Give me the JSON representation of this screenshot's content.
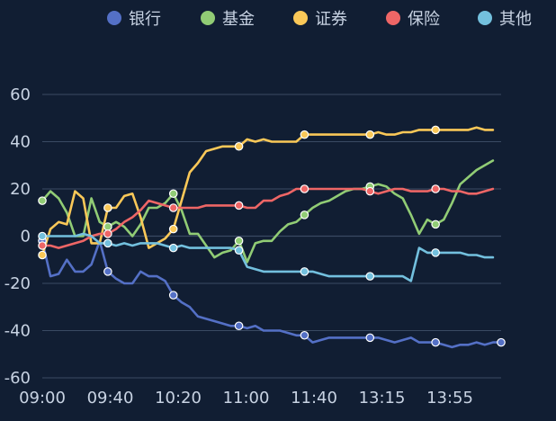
{
  "chart_data": {
    "type": "line",
    "title": "",
    "xlabel": "",
    "ylabel": "",
    "ylim": [
      -60,
      60
    ],
    "yticks": [
      60,
      40,
      20,
      0,
      -20,
      -40,
      -60
    ],
    "xtick_labels": [
      "09:00",
      "09:40",
      "10:20",
      "11:00",
      "11:40",
      "13:15",
      "13:55"
    ],
    "legend_position": "top-right",
    "grid": true,
    "colors": {
      "background": "#111e33",
      "grid": "#3a4a63",
      "axis_text": "#c8d3e3"
    },
    "series": [
      {
        "name": "银行",
        "color": "#5470c6",
        "values": [
          -2,
          -17,
          -16,
          -10,
          -15,
          -15,
          -12,
          -2,
          -15,
          -18,
          -20,
          -20,
          -15,
          -17,
          -17,
          -19,
          -25,
          -28,
          -30,
          -34,
          -35,
          -36,
          -37,
          -38,
          -38,
          -39,
          -38,
          -40,
          -40,
          -40,
          -41,
          -42,
          -42,
          -45,
          -44,
          -43,
          -43,
          -43,
          -43,
          -43,
          -43,
          -43,
          -44,
          -45,
          -44,
          -43,
          -45,
          -45,
          -45,
          -46,
          -47,
          -46,
          -46,
          -45,
          -46,
          -45,
          -45
        ]
      },
      {
        "name": "基金",
        "color": "#91cc75",
        "values": [
          15,
          19,
          16,
          10,
          0,
          0,
          16,
          6,
          4,
          6,
          4,
          0,
          5,
          12,
          12,
          14,
          18,
          11,
          1,
          1,
          -4,
          -9,
          -7,
          -6,
          -2,
          -11,
          -3,
          -2,
          -2,
          2,
          5,
          6,
          9,
          12,
          14,
          15,
          17,
          19,
          20,
          20,
          21,
          22,
          21,
          18,
          16,
          9,
          1,
          7,
          5,
          7,
          14,
          22,
          25,
          28,
          30,
          32
        ]
      },
      {
        "name": "证券",
        "color": "#fac858",
        "values": [
          -8,
          3,
          6,
          5,
          19,
          16,
          -3,
          -3,
          12,
          12,
          17,
          18,
          8,
          -5,
          -3,
          -1,
          3,
          15,
          27,
          31,
          36,
          37,
          38,
          38,
          38,
          41,
          40,
          41,
          40,
          40,
          40,
          40,
          43,
          43,
          43,
          43,
          43,
          43,
          43,
          43,
          43,
          44,
          43,
          43,
          44,
          44,
          45,
          45,
          45,
          45,
          45,
          45,
          45,
          46,
          45,
          45
        ]
      },
      {
        "name": "保险",
        "color": "#ee6666",
        "values": [
          -4,
          -4,
          -5,
          -4,
          -3,
          -2,
          0,
          1,
          1,
          3,
          6,
          8,
          11,
          15,
          14,
          13,
          12,
          12,
          12,
          12,
          13,
          13,
          13,
          13,
          13,
          12,
          12,
          15,
          15,
          17,
          18,
          20,
          20,
          20,
          20,
          20,
          20,
          20,
          20,
          20,
          19,
          18,
          19,
          20,
          20,
          19,
          19,
          19,
          20,
          20,
          19,
          19,
          18,
          18,
          19,
          20
        ]
      },
      {
        "name": "其他",
        "color": "#73c0de",
        "values": [
          0,
          0,
          0,
          0,
          0,
          1,
          0,
          -3,
          -3,
          -4,
          -3,
          -4,
          -3,
          -3,
          -3,
          -4,
          -5,
          -4,
          -5,
          -5,
          -5,
          -5,
          -5,
          -5,
          -6,
          -13,
          -14,
          -15,
          -15,
          -15,
          -15,
          -15,
          -15,
          -15,
          -16,
          -17,
          -17,
          -17,
          -17,
          -17,
          -17,
          -17,
          -17,
          -17,
          -17,
          -19,
          -5,
          -7,
          -7,
          -7,
          -7,
          -7,
          -8,
          -8,
          -9,
          -9
        ]
      }
    ]
  }
}
